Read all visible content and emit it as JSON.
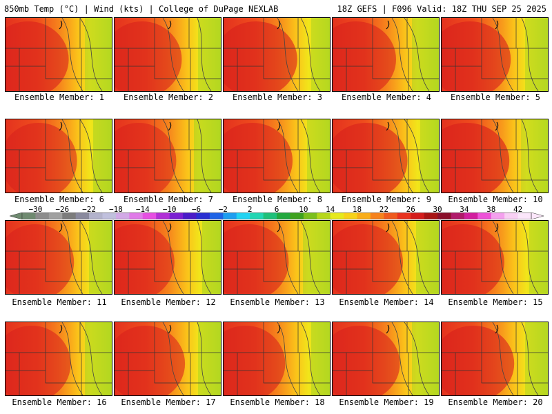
{
  "header": {
    "left_title": "850mb Temp (°C) | Wind (kts) | College of DuPage NEXLAB",
    "right_title": "18Z GEFS | F096 Valid: 18Z THU SEP 25 2025"
  },
  "panels": [
    {
      "label": "Ensemble Member: 1",
      "warm": 0.62
    },
    {
      "label": "Ensemble Member: 2",
      "warm": 0.58
    },
    {
      "label": "Ensemble Member: 3",
      "warm": 0.66
    },
    {
      "label": "Ensemble Member: 4",
      "warm": 0.6
    },
    {
      "label": "Ensemble Member: 5",
      "warm": 0.64
    },
    {
      "label": "Ensemble Member: 6",
      "warm": 0.52
    },
    {
      "label": "Ensemble Member: 7",
      "warm": 0.48
    },
    {
      "label": "Ensemble Member: 8",
      "warm": 0.6
    },
    {
      "label": "Ensemble Member: 9",
      "warm": 0.65
    },
    {
      "label": "Ensemble Member: 10",
      "warm": 0.74
    },
    {
      "label": "Ensemble Member: 11",
      "warm": 0.54
    },
    {
      "label": "Ensemble Member: 12",
      "warm": 0.56
    },
    {
      "label": "Ensemble Member: 13",
      "warm": 0.58
    },
    {
      "label": "Ensemble Member: 14",
      "warm": 0.6
    },
    {
      "label": "Ensemble Member: 15",
      "warm": 0.66
    },
    {
      "label": "Ensemble Member: 16",
      "warm": 0.55
    },
    {
      "label": "Ensemble Member: 17",
      "warm": 0.57
    },
    {
      "label": "Ensemble Member: 18",
      "warm": 0.58
    },
    {
      "label": "Ensemble Member: 19",
      "warm": 0.62
    },
    {
      "label": "Ensemble Member: 20",
      "warm": 0.64
    }
  ],
  "colorbar": {
    "ticks": [
      "-30",
      "-26",
      "-22",
      "-18",
      "-14",
      "-10",
      "-6",
      "-2",
      "2",
      "6",
      "10",
      "14",
      "18",
      "22",
      "26",
      "30",
      "34",
      "38",
      "42"
    ],
    "min": -32,
    "max": 44,
    "step": 2,
    "colors": [
      "#6f8a70",
      "#8c8c8c",
      "#a0a0a0",
      "#7c7c7c",
      "#8a8a9e",
      "#b3b3cc",
      "#c0c0dd",
      "#d2a9e6",
      "#e07ae8",
      "#e64fe2",
      "#b12fd6",
      "#7b1fd2",
      "#4a1bc8",
      "#2a2fd1",
      "#1f63e6",
      "#1e9ef0",
      "#22d3f2",
      "#22d6b3",
      "#1fc07a",
      "#22a83e",
      "#3fa21f",
      "#7bbf1c",
      "#b7d71c",
      "#e6e91c",
      "#f7d21a",
      "#f9ad19",
      "#f6821c",
      "#ef5a1d",
      "#e8321e",
      "#d41c1c",
      "#a81414",
      "#8a0f2a",
      "#b01a6a",
      "#d21e9e",
      "#ee52d8",
      "#f4a0ee",
      "#f8d0f4",
      "#fbe6fa"
    ]
  }
}
